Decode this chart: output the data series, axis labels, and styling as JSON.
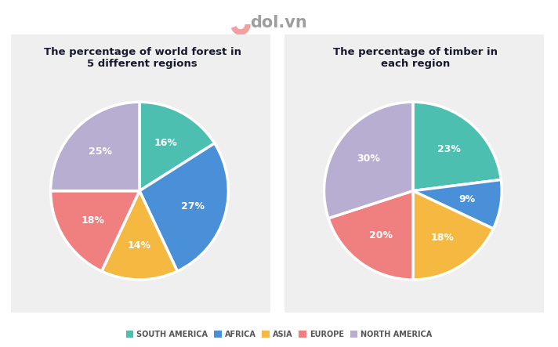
{
  "chart1_title": "The percentage of world forest in\n5 different regions",
  "chart2_title": "The percentage of timber in\neach region",
  "regions": [
    "SOUTH AMERICA",
    "AFRICA",
    "ASIA",
    "EUROPE",
    "NORTH AMERICA"
  ],
  "colors": [
    "#4DBFB0",
    "#4A90D9",
    "#F5B942",
    "#F08080",
    "#B8AED2"
  ],
  "chart1_values": [
    16,
    27,
    14,
    18,
    25
  ],
  "chart2_values": [
    23,
    9,
    18,
    20,
    30
  ],
  "chart1_labels": [
    "16%",
    "27%",
    "14%",
    "18%",
    "25%"
  ],
  "chart2_labels": [
    "23%",
    "9%",
    "18%",
    "20%",
    "30%"
  ],
  "panel_color": "#EFEFEF",
  "main_bg": "#FFFFFF",
  "title_color": "#1A1A2E",
  "logo_color": "#9E9E9E",
  "logo_icon_color": "#F4A0A0",
  "label_color": "#FFFFFF",
  "legend_text_color": "#555555"
}
